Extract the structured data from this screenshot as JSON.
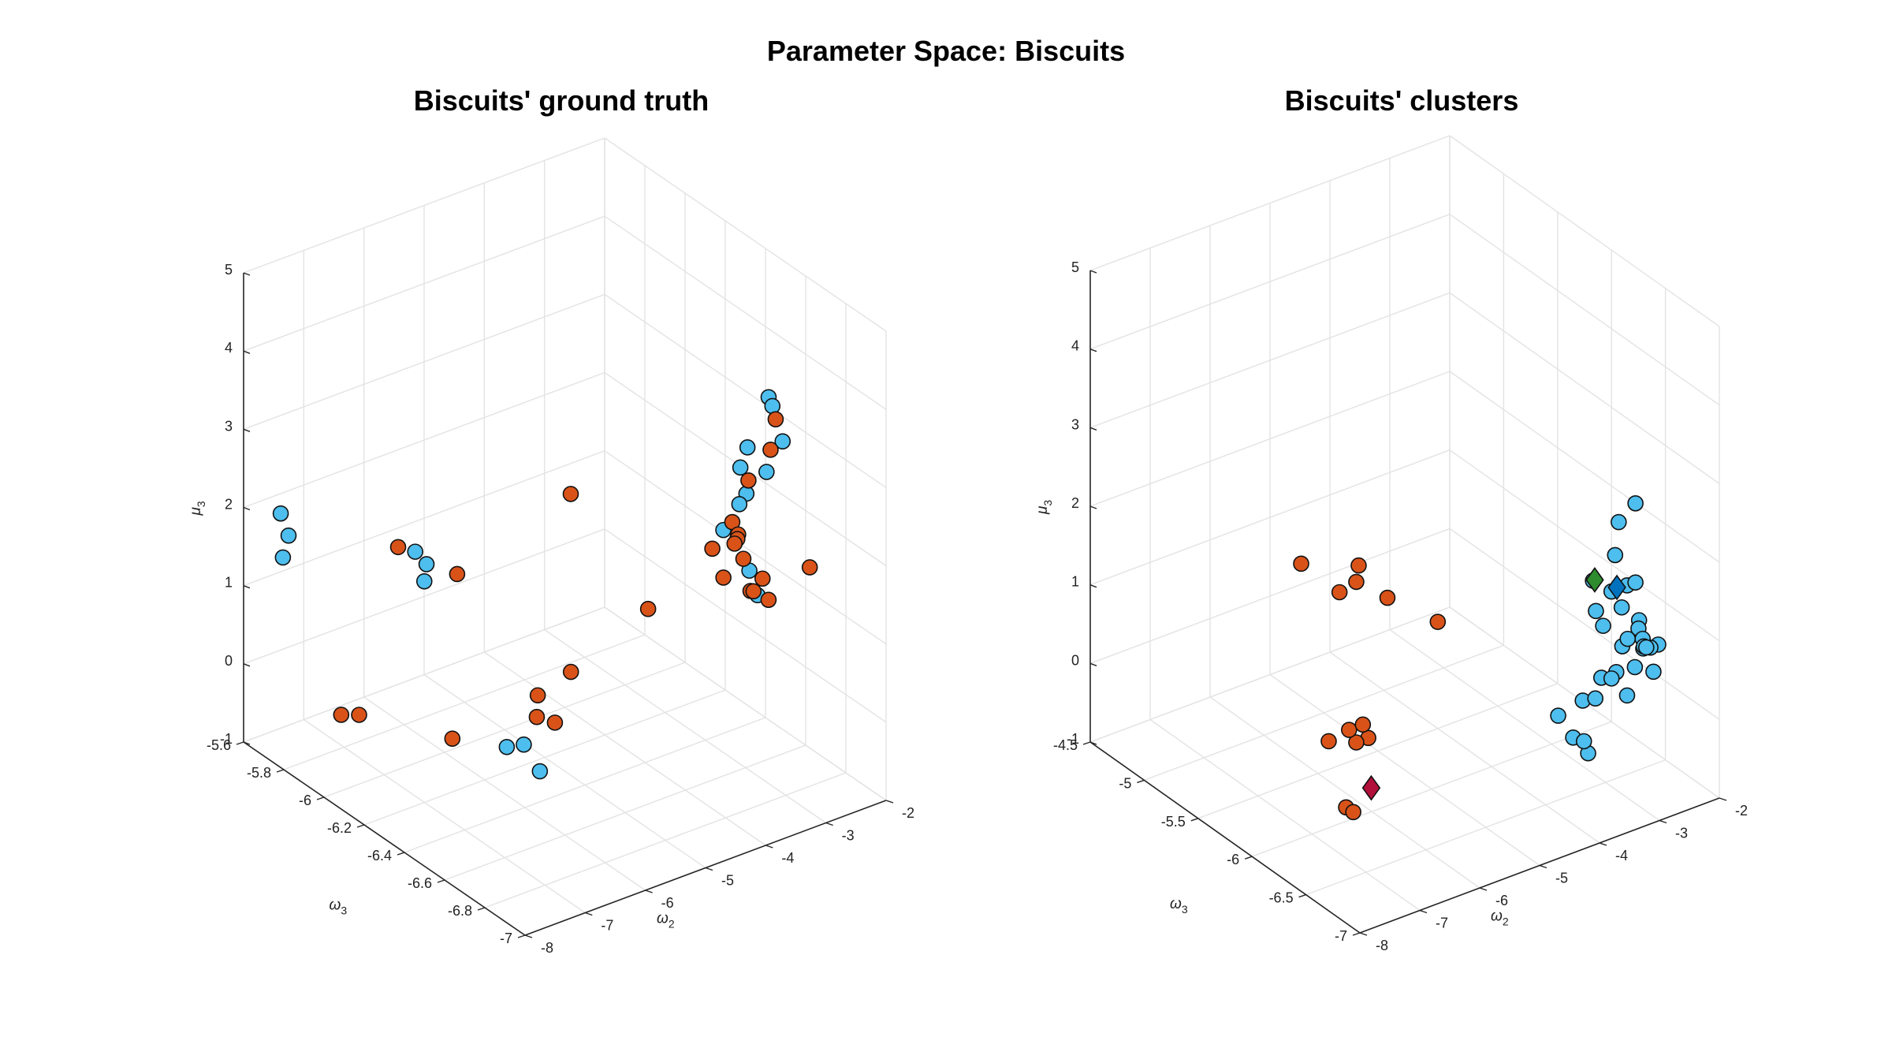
{
  "figure": {
    "title": "Parameter Space: Biscuits"
  },
  "colors": {
    "blue": "#4DBEEE",
    "orange": "#D95319",
    "grid": "#e3e3e3",
    "axis": "#262626",
    "centroid_blue": "#0072BD",
    "centroid_green": "#2E8B2E",
    "centroid_red": "#B0103A"
  },
  "chart_data": [
    {
      "type": "scatter",
      "title": "Biscuits' ground truth",
      "xlabel": "ω2",
      "ylabel": "ω3",
      "zlabel": "μ3",
      "xlim": [
        -8,
        -2
      ],
      "ylim": [
        -7,
        -5.6
      ],
      "zlim": [
        -1,
        5
      ],
      "xticks": [
        "-8",
        "-7",
        "-6",
        "-5",
        "-4",
        "-3",
        "-2"
      ],
      "yticks": [
        "-5.6",
        "-5.8",
        "-6",
        "-6.2",
        "-6.4",
        "-6.6",
        "-6.8",
        "-7"
      ],
      "zticks": [
        "-1",
        "0",
        "1",
        "2",
        "3",
        "4",
        "5"
      ],
      "grid": true,
      "series": [
        {
          "color": "blue",
          "points": [
            [
              -7.45,
              -5.62,
              1.8
            ],
            [
              -7.32,
              -5.62,
              1.48
            ],
            [
              -7.38,
              -5.61,
              1.2
            ],
            [
              -6.05,
              -5.87,
              1.35
            ],
            [
              -6.6,
              -6.08,
              1.5
            ],
            [
              -6.43,
              -6.04,
              1.6
            ],
            [
              -6.9,
              -6.58,
              0.35
            ],
            [
              -6.25,
              -6.47,
              0.0
            ],
            [
              -6.25,
              -6.55,
              -0.2
            ],
            [
              -2.95,
              -6.7,
              3.9
            ],
            [
              -2.62,
              -6.62,
              3.55
            ],
            [
              -2.45,
              -6.62,
              3.05
            ],
            [
              -2.8,
              -6.55,
              2.95
            ],
            [
              -2.55,
              -6.57,
              2.6
            ],
            [
              -2.15,
              -6.32,
              2.1
            ],
            [
              -2.25,
              -6.38,
              1.9
            ],
            [
              -2.7,
              -6.4,
              1.6
            ],
            [
              -2.0,
              -6.27,
              1.5
            ],
            [
              -2.9,
              -6.63,
              1.23
            ],
            [
              -2.1,
              -6.35,
              0.82
            ]
          ]
        },
        {
          "color": "orange",
          "points": [
            [
              -7.25,
              -5.95,
              -0.25
            ],
            [
              -7.38,
              -5.9,
              -0.3
            ],
            [
              -5.7,
              -5.95,
              -1.0
            ],
            [
              -6.1,
              -5.8,
              1.3
            ],
            [
              -5.52,
              -5.92,
              1.0
            ],
            [
              -5.8,
              -6.4,
              0.1
            ],
            [
              -5.45,
              -6.3,
              0.1
            ],
            [
              -6.0,
              -6.55,
              0.35
            ],
            [
              -5.4,
              -6.45,
              0.65
            ],
            [
              -3.9,
              -6.0,
              1.7
            ],
            [
              -3.95,
              -6.4,
              0.95
            ],
            [
              -3.2,
              -6.55,
              1.4
            ],
            [
              -2.75,
              -6.55,
              1.1
            ],
            [
              -2.6,
              -6.52,
              1.0
            ],
            [
              -2.45,
              -6.55,
              0.9
            ],
            [
              -2.55,
              -6.55,
              1.2
            ],
            [
              -2.05,
              -6.25,
              1.25
            ],
            [
              -2.12,
              -6.3,
              1.2
            ],
            [
              -2.2,
              -6.32,
              1.2
            ],
            [
              -2.18,
              -6.3,
              1.1
            ],
            [
              -2.2,
              -6.35,
              1.0
            ],
            [
              -3.0,
              -6.75,
              3.72
            ],
            [
              -2.65,
              -6.62,
              3.0
            ],
            [
              -3.05,
              -6.45,
              1.55
            ],
            [
              -2.45,
              -6.45,
              2.25
            ],
            [
              -2.6,
              -6.8,
              1.8
            ]
          ]
        }
      ]
    },
    {
      "type": "scatter",
      "title": "Biscuits' clusters",
      "xlabel": "ω2",
      "ylabel": "ω3",
      "zlabel": "μ3",
      "xlim": [
        -8,
        -2
      ],
      "ylim": [
        -7,
        -4.5
      ],
      "zlim": [
        -1,
        5
      ],
      "xticks": [
        "-8",
        "-7",
        "-6",
        "-5",
        "-4",
        "-3",
        "-2"
      ],
      "yticks": [
        "-4.5",
        "-5",
        "-5.5",
        "-6",
        "-6.5",
        "-7"
      ],
      "zticks": [
        "-1",
        "0",
        "1",
        "2",
        "3",
        "4",
        "5"
      ],
      "grid": true,
      "series": [
        {
          "color": "blue",
          "points": [
            [
              -3.0,
              -6.7,
              1.7
            ],
            [
              -3.4,
              -7.0,
              3.15
            ],
            [
              -2.3,
              -6.2,
              1.4
            ],
            [
              -2.6,
              -6.4,
              2.1
            ],
            [
              -3.4,
              -6.7,
              1.3
            ],
            [
              -3.3,
              -6.55,
              1.7
            ],
            [
              -3.25,
              -6.55,
              1.3
            ],
            [
              -2.9,
              -6.5,
              1.4
            ],
            [
              -2.5,
              -6.5,
              1.4
            ],
            [
              -2.8,
              -6.7,
              1.2
            ],
            [
              -2.9,
              -6.6,
              0.8
            ],
            [
              -2.55,
              -6.4,
              1.0
            ],
            [
              -3.0,
              -6.6,
              0.5
            ],
            [
              -3.65,
              -6.7,
              -0.25
            ],
            [
              -3.7,
              -6.45,
              0.0
            ],
            [
              -3.2,
              -6.4,
              0.0
            ],
            [
              -3.45,
              -6.45,
              -0.35
            ],
            [
              -3.45,
              -6.55,
              -0.3
            ],
            [
              -3.0,
              -6.7,
              0.3
            ],
            [
              -3.25,
              -6.6,
              0.5
            ],
            [
              -2.6,
              -6.55,
              0.4
            ],
            [
              -2.65,
              -6.75,
              0.55
            ],
            [
              -2.45,
              -6.5,
              0.8
            ],
            [
              -2.3,
              -6.6,
              0.65
            ],
            [
              -2.25,
              -6.5,
              0.5
            ],
            [
              -2.2,
              -6.4,
              0.5
            ],
            [
              -2.1,
              -6.35,
              0.3
            ],
            [
              -2.0,
              -6.3,
              0.25
            ],
            [
              -2.05,
              -6.35,
              0.3
            ],
            [
              -2.0,
              -6.15,
              0.2
            ],
            [
              -2.0,
              -6.0,
              -0.45
            ],
            [
              -2.0,
              -5.85,
              -0.85
            ]
          ]
        },
        {
          "color": "orange",
          "points": [
            [
              -6.1,
              -5.4,
              1.6
            ],
            [
              -5.9,
              -5.8,
              1.7
            ],
            [
              -6.0,
              -5.7,
              1.5
            ],
            [
              -5.5,
              -5.6,
              1.6
            ],
            [
              -5.2,
              -5.7,
              1.2
            ],
            [
              -4.9,
              -6.0,
              1.1
            ],
            [
              -6.6,
              -6.3,
              0.4
            ],
            [
              -6.8,
              -6.3,
              0.4
            ],
            [
              -6.9,
              -6.1,
              0.25
            ],
            [
              -6.2,
              -5.9,
              0.0
            ],
            [
              -6.15,
              -6.0,
              0.15
            ],
            [
              -6.7,
              -6.15,
              -0.6
            ],
            [
              -7.3,
              -6.55,
              -0.1
            ]
          ]
        },
        {
          "color": "centroid_blue",
          "marker": "diamond",
          "points": [
            [
              -2.9,
              -6.55,
              1.5
            ]
          ]
        },
        {
          "color": "centroid_green",
          "marker": "diamond",
          "points": [
            [
              -3.45,
              -6.65,
              1.85
            ]
          ]
        },
        {
          "color": "centroid_red",
          "marker": "diamond",
          "points": [
            [
              -6.55,
              -6.3,
              -0.25
            ]
          ]
        }
      ]
    }
  ]
}
